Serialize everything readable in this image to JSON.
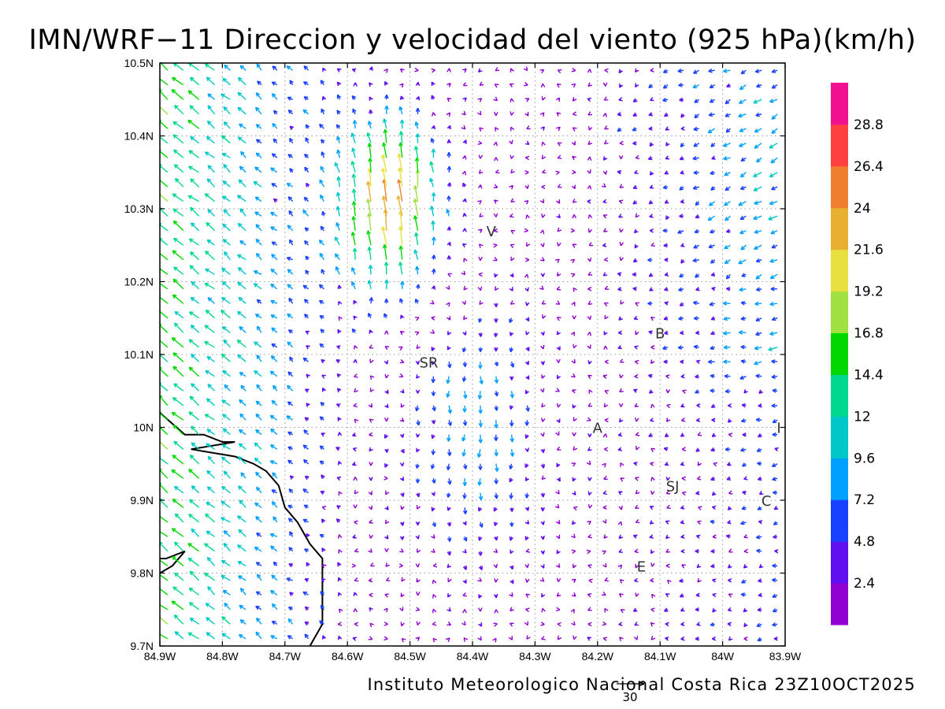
{
  "title": "IMN/WRF−11 Direccion y velocidad del viento (925 hPa)(km/h)",
  "credit": "Instituto Meteorologico Nacional Costa Rica 23Z10OCT2025",
  "reference_vector": {
    "value": 30,
    "label": "30"
  },
  "chart_data": {
    "type": "vector-field",
    "variable": "wind direction and speed",
    "level": "925 hPa",
    "units": "km/h",
    "valid_time": "23Z10OCT2025",
    "x_axis": {
      "range": [
        -84.9,
        -83.9
      ],
      "tick_values": [
        -84.9,
        -84.8,
        -84.7,
        -84.6,
        -84.5,
        -84.4,
        -84.3,
        -84.2,
        -84.1,
        -84.0,
        -83.9
      ],
      "tick_labels": [
        "84.9W",
        "84.8W",
        "84.7W",
        "84.6W",
        "84.5W",
        "84.4W",
        "84.3W",
        "84.2W",
        "84.1W",
        "84W",
        "83.9W"
      ]
    },
    "y_axis": {
      "range": [
        9.7,
        10.5
      ],
      "tick_values": [
        9.7,
        9.8,
        9.9,
        10.0,
        10.1,
        10.2,
        10.3,
        10.4,
        10.5
      ],
      "tick_labels": [
        "9.7N",
        "9.8N",
        "9.9N",
        "10N",
        "10.1N",
        "10.2N",
        "10.3N",
        "10.4N",
        "10.5N"
      ]
    },
    "grid": true,
    "colorbar": {
      "thresholds": [
        2.4,
        4.8,
        7.2,
        9.6,
        12,
        14.4,
        16.8,
        19.2,
        21.6,
        24,
        26.4,
        28.8
      ],
      "labels": [
        "2.4",
        "4.8",
        "7.2",
        "9.6",
        "12",
        "14.4",
        "16.8",
        "19.2",
        "21.6",
        "24",
        "26.4",
        "28.8"
      ],
      "colors": [
        "#9000d0",
        "#6010f0",
        "#1840ff",
        "#00a0ff",
        "#00c8c8",
        "#00d890",
        "#00d800",
        "#a0e040",
        "#e8e040",
        "#e8b030",
        "#f08030",
        "#ff4040",
        "#f01090"
      ]
    },
    "places": [
      {
        "label": "V",
        "lon": -84.37,
        "lat": 10.27
      },
      {
        "label": "SR",
        "lon": -84.47,
        "lat": 10.09
      },
      {
        "label": "B",
        "lon": -84.1,
        "lat": 10.13
      },
      {
        "label": "A",
        "lon": -84.2,
        "lat": 10.0
      },
      {
        "label": "I",
        "lon": -83.91,
        "lat": 10.0
      },
      {
        "label": "SJ",
        "lon": -84.08,
        "lat": 9.92
      },
      {
        "label": "C",
        "lon": -83.93,
        "lat": 9.9
      },
      {
        "label": "E",
        "lon": -84.13,
        "lat": 9.81
      }
    ],
    "coastline": [
      [
        -84.9,
        10.02
      ],
      [
        -84.86,
        9.99
      ],
      [
        -84.83,
        9.99
      ],
      [
        -84.8,
        9.98
      ],
      [
        -84.78,
        9.98
      ],
      [
        -84.85,
        9.97
      ],
      [
        -84.78,
        9.96
      ],
      [
        -84.75,
        9.95
      ],
      [
        -84.73,
        9.94
      ],
      [
        -84.71,
        9.92
      ],
      [
        -84.7,
        9.89
      ],
      [
        -84.68,
        9.87
      ],
      [
        -84.66,
        9.84
      ],
      [
        -84.64,
        9.82
      ],
      [
        -84.64,
        9.79
      ],
      [
        -84.64,
        9.73
      ],
      [
        -84.66,
        9.7
      ]
    ],
    "island": [
      [
        -84.9,
        9.8
      ],
      [
        -84.88,
        9.81
      ],
      [
        -84.86,
        9.83
      ],
      [
        -84.89,
        9.82
      ],
      [
        -84.9,
        9.82
      ]
    ]
  }
}
